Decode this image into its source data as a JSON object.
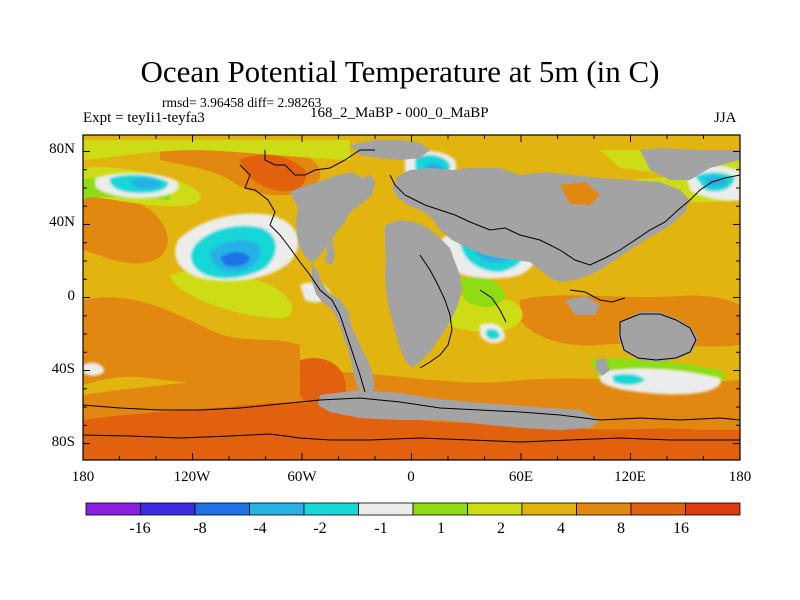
{
  "figure": {
    "title": "Ocean Potential Temperature at 5m (in C)",
    "stats": "rmsd= 3.96458 diff= 2.98263",
    "experiment": "Expt = teyIi1-teyfa3",
    "difference": "168_2_MaBP - 000_0_MaBP",
    "season": "JJA"
  },
  "map_axes": {
    "lat_ticks": [
      "80N",
      "40N",
      "0",
      "40S",
      "80S"
    ],
    "lon_ticks": [
      "180",
      "120W",
      "60W",
      "0",
      "60E",
      "120E",
      "180"
    ]
  },
  "colorbar": {
    "colors": [
      "#8a1fe0",
      "#3c2be0",
      "#1f72e6",
      "#27b1e6",
      "#17d7d7",
      "#ececec",
      "#8edc14",
      "#cddc14",
      "#e2b40f",
      "#e2870f",
      "#e2610f",
      "#dc3a0f"
    ],
    "labels": [
      "-16",
      "-8",
      "-4",
      "-2",
      "-1",
      "1",
      "2",
      "4",
      "8",
      "16"
    ]
  },
  "colors": {
    "land": "#a3a3a3",
    "coast": "#000000"
  }
}
